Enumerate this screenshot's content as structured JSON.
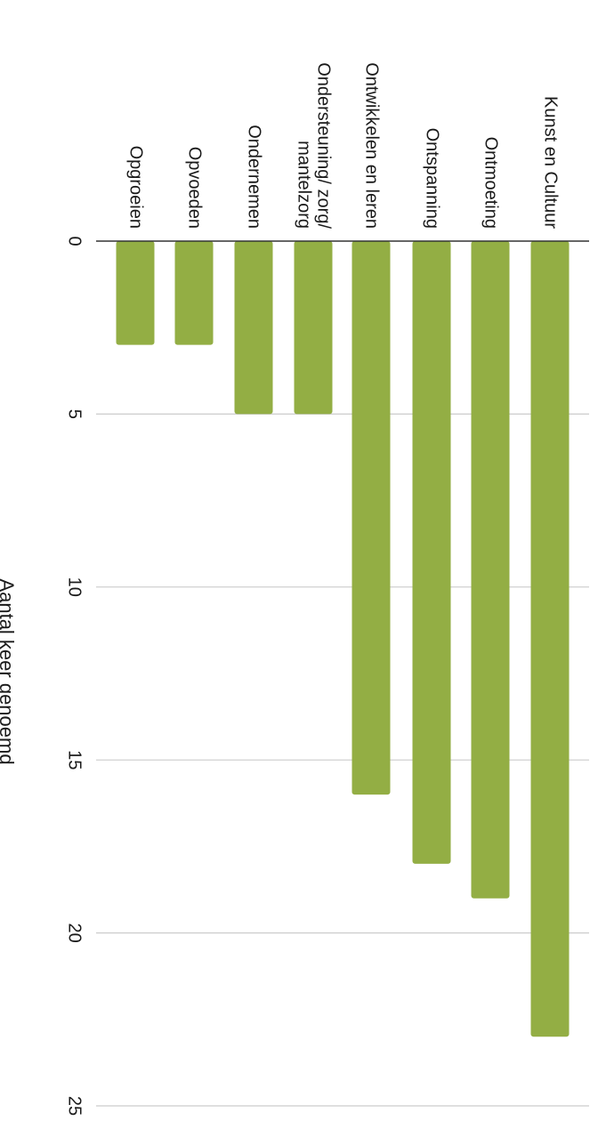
{
  "chart_data": {
    "type": "bar",
    "orientation": "rotated-90-clockwise",
    "categories": [
      "Opgroeien",
      "Opvoeden",
      "Ondernemen",
      "Ondersteuning/ zorg/ mantelzorg",
      "Ontwikkelen en leren",
      "Ontspanning",
      "Ontmoeting",
      "Kunst en Cultuur"
    ],
    "values": [
      3,
      3,
      5,
      5,
      16,
      18,
      19,
      23
    ],
    "ylabel": "Aantal keer genoemd",
    "ylim": [
      0,
      25
    ],
    "yticks": [
      0,
      5,
      10,
      15,
      20,
      25
    ],
    "grid": true,
    "bar_color": "#93ae44"
  }
}
